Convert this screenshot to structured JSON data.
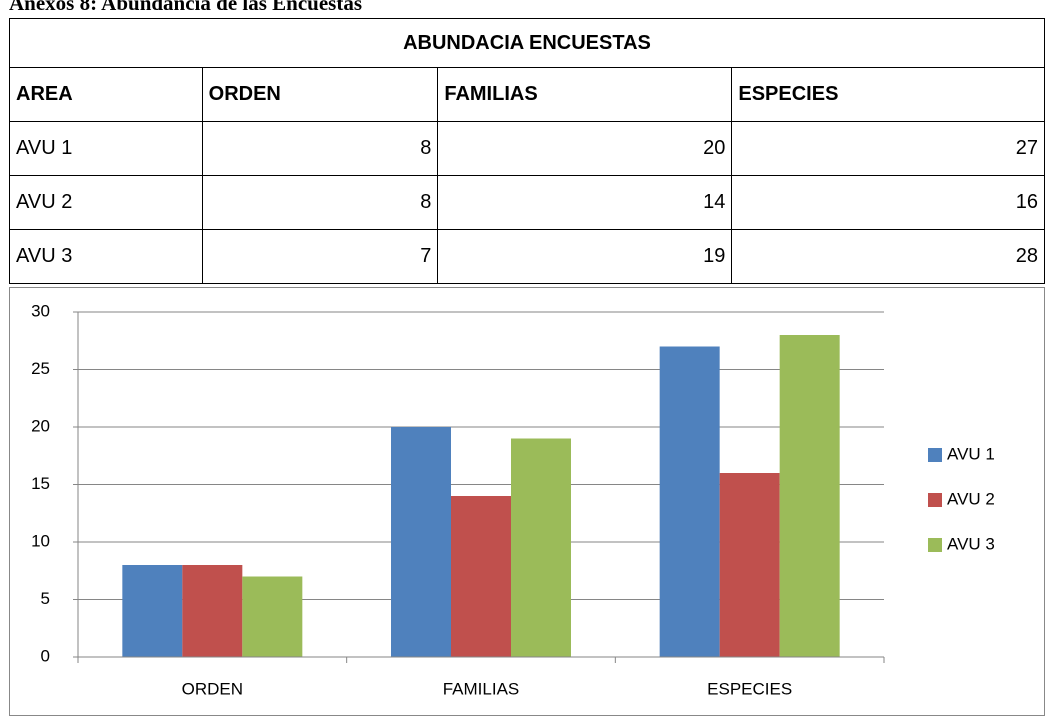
{
  "caption": "Anexos 8: Abundancia de las Encuestas",
  "table": {
    "title": "ABUNDACIA ENCUESTAS",
    "header": [
      "AREA",
      "ORDEN",
      "FAMILIAS",
      "ESPECIES"
    ],
    "rows": [
      [
        "AVU 1",
        8,
        20,
        27
      ],
      [
        "AVU 2",
        8,
        14,
        16
      ],
      [
        "AVU 3",
        7,
        19,
        28
      ]
    ]
  },
  "chart_data": {
    "type": "bar",
    "categories": [
      "ORDEN",
      "FAMILIAS",
      "ESPECIES"
    ],
    "series": [
      {
        "name": "AVU 1",
        "color": "#4f81bd",
        "values": [
          8,
          20,
          27
        ]
      },
      {
        "name": "AVU 2",
        "color": "#c0504d",
        "values": [
          8,
          14,
          16
        ]
      },
      {
        "name": "AVU 3",
        "color": "#9bbb59",
        "values": [
          7,
          19,
          28
        ]
      }
    ],
    "ylim": [
      0,
      30
    ],
    "yticks": [
      0,
      5,
      10,
      15,
      20,
      25,
      30
    ],
    "grid": true,
    "legend": "right"
  }
}
